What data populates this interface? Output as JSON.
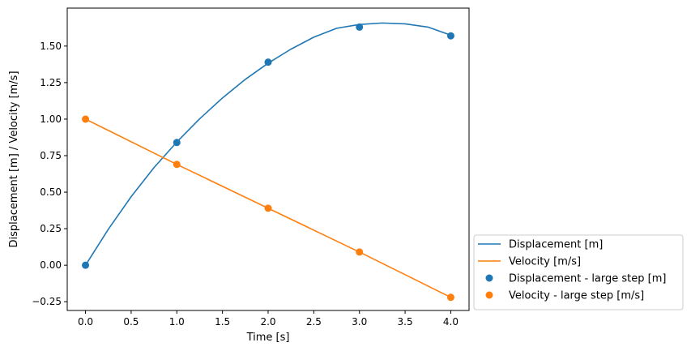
{
  "chart_data": {
    "type": "line",
    "xlabel": "Time [s]",
    "ylabel": "Displacement [m] / Velocity [m/s]",
    "xlim": [
      -0.2,
      4.2
    ],
    "ylim": [
      -0.31,
      1.76
    ],
    "grid": false,
    "legend_placement": "outside-lower-right",
    "x_ticks": [
      0.0,
      0.5,
      1.0,
      1.5,
      2.0,
      2.5,
      3.0,
      3.5,
      4.0
    ],
    "x_tick_labels": [
      "0.0",
      "0.5",
      "1.0",
      "1.5",
      "2.0",
      "2.5",
      "3.0",
      "3.5",
      "4.0"
    ],
    "y_ticks": [
      -0.25,
      0.0,
      0.25,
      0.5,
      0.75,
      1.0,
      1.25,
      1.5
    ],
    "y_tick_labels": [
      "−0.25",
      "0.00",
      "0.25",
      "0.50",
      "0.75",
      "1.00",
      "1.25",
      "1.50"
    ],
    "series": [
      {
        "name": "Displacement [m]",
        "kind": "line",
        "color": "#1f77b4",
        "x": [
          0.0,
          0.25,
          0.5,
          0.75,
          1.0,
          1.25,
          1.5,
          1.75,
          2.0,
          2.25,
          2.5,
          2.75,
          3.0,
          3.25,
          3.5,
          3.75,
          4.0
        ],
        "y": [
          0.0,
          0.246,
          0.469,
          0.668,
          0.843,
          1.002,
          1.145,
          1.272,
          1.383,
          1.479,
          1.561,
          1.622,
          1.648,
          1.658,
          1.652,
          1.63,
          1.575
        ]
      },
      {
        "name": "Velocity [m/s]",
        "kind": "line",
        "color": "#ff7f0e",
        "x": [
          0.0,
          1.0,
          2.0,
          3.0,
          4.0
        ],
        "y": [
          1.0,
          0.69,
          0.39,
          0.09,
          -0.22
        ]
      },
      {
        "name": "Displacement - large step [m]",
        "kind": "scatter",
        "color": "#1f77b4",
        "x": [
          0.0,
          1.0,
          2.0,
          3.0,
          4.0
        ],
        "y": [
          0.0,
          0.84,
          1.39,
          1.63,
          1.57
        ]
      },
      {
        "name": "Velocity - large step [m/s]",
        "kind": "scatter",
        "color": "#ff7f0e",
        "x": [
          0.0,
          1.0,
          2.0,
          3.0,
          4.0
        ],
        "y": [
          1.0,
          0.69,
          0.39,
          0.09,
          -0.22
        ]
      }
    ]
  }
}
